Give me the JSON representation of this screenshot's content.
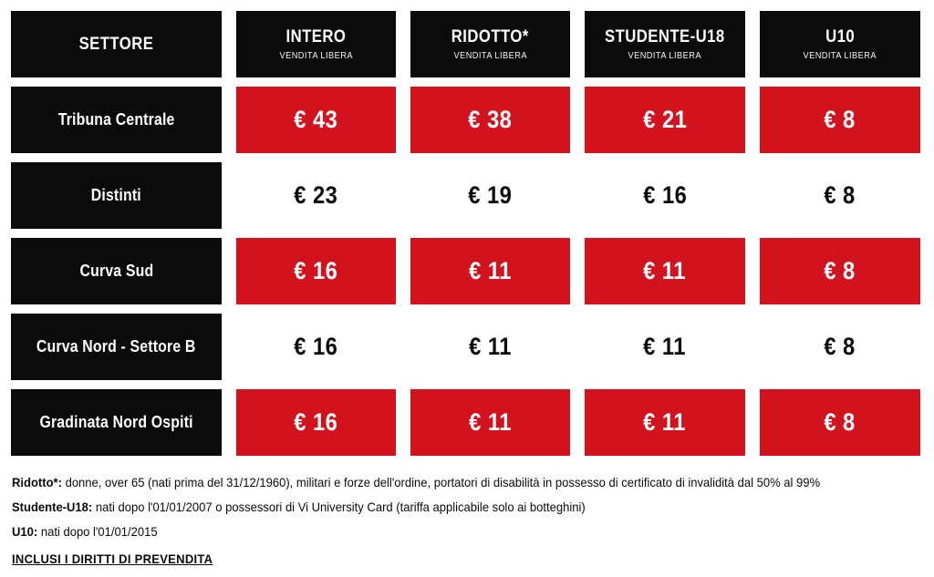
{
  "colors": {
    "accent_red": "#d2121c",
    "header_black": "#0b0b0b"
  },
  "table": {
    "sector_header": "SETTORE",
    "columns": [
      {
        "title": "INTERO",
        "subtitle": "VENDITA LIBERA"
      },
      {
        "title": "RIDOTTO*",
        "subtitle": "VENDITA LIBERA"
      },
      {
        "title": "STUDENTE-U18",
        "subtitle": "VENDITA LIBERA"
      },
      {
        "title": "U10",
        "subtitle": "VENDITA LIBERA"
      }
    ],
    "rows": [
      {
        "sector": "Tribuna Centrale",
        "highlight": true,
        "prices": [
          "€ 43",
          "€ 38",
          "€ 21",
          "€ 8"
        ]
      },
      {
        "sector": "Distinti",
        "highlight": false,
        "prices": [
          "€ 23",
          "€ 19",
          "€ 16",
          "€ 8"
        ]
      },
      {
        "sector": "Curva Sud",
        "highlight": true,
        "prices": [
          "€ 16",
          "€ 11",
          "€ 11",
          "€ 8"
        ]
      },
      {
        "sector": "Curva Nord - Settore B",
        "highlight": false,
        "prices": [
          "€ 16",
          "€ 11",
          "€ 11",
          "€ 8"
        ]
      },
      {
        "sector": "Gradinata Nord Ospiti",
        "highlight": true,
        "prices": [
          "€ 16",
          "€ 11",
          "€ 11",
          "€ 8"
        ]
      }
    ]
  },
  "notes": [
    {
      "label": "Ridotto*:",
      "text": " donne, over 65 (nati prima del 31/12/1960), militari e forze dell'ordine, portatori di disabilità in possesso di certificato di invalidità dal 50% al 99%"
    },
    {
      "label": "Studente-U18:",
      "text": " nati dopo l'01/01/2007 o possessori di Vi University Card (tariffa applicabile solo ai botteghini)"
    },
    {
      "label": "U10:",
      "text": " nati dopo l'01/01/2015"
    }
  ],
  "presale_note": "INCLUSI I DIRITTI DI PREVENDITA",
  "chart_data": {
    "type": "table",
    "title": "Prezzi biglietti per settore",
    "columns": [
      "SETTORE",
      "INTERO VENDITA LIBERA",
      "RIDOTTO* VENDITA LIBERA",
      "STUDENTE-U18 VENDITA LIBERA",
      "U10 VENDITA LIBERA"
    ],
    "rows": [
      [
        "Tribuna Centrale",
        43,
        38,
        21,
        8
      ],
      [
        "Distinti",
        23,
        19,
        16,
        8
      ],
      [
        "Curva Sud",
        16,
        11,
        11,
        8
      ],
      [
        "Curva Nord - Settore B",
        16,
        11,
        11,
        8
      ],
      [
        "Gradinata Nord Ospiti",
        16,
        11,
        11,
        8
      ]
    ],
    "currency": "EUR",
    "highlighted_rows": [
      "Tribuna Centrale",
      "Curva Sud",
      "Gradinata Nord Ospiti"
    ],
    "footnotes": [
      "Ridotto*: donne, over 65 (nati prima del 31/12/1960), militari e forze dell'ordine, portatori di disabilità in possesso di certificato di invalidità dal 50% al 99%",
      "Studente-U18: nati dopo l'01/01/2007 o possessori di Vi University Card (tariffa applicabile solo ai botteghini)",
      "U10: nati dopo l'01/01/2015",
      "INCLUSI I DIRITTI DI PREVENDITA"
    ]
  }
}
